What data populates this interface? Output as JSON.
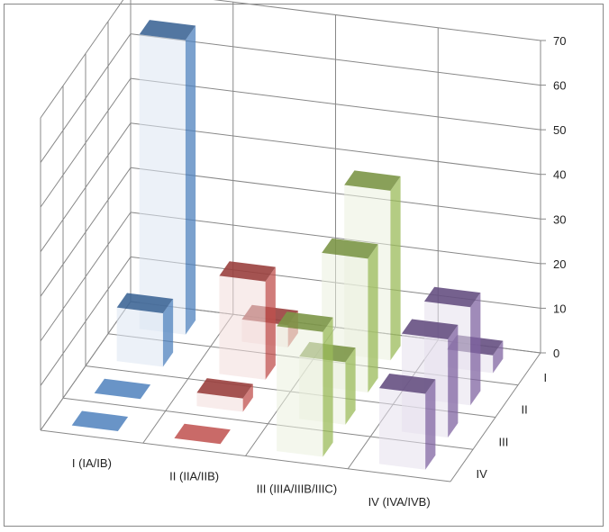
{
  "chart_data": {
    "type": "bar",
    "subtype": "3d-column",
    "categories": [
      "I (IA/IB)",
      "II (IIA/IIB)",
      "III (IIIA/IIIB/IIIC)",
      "IV (IVA/IVB)"
    ],
    "depth_categories": [
      "I",
      "II",
      "III",
      "IV"
    ],
    "series_by_depth": [
      {
        "values": [
          66,
          5,
          38,
          4
        ]
      },
      {
        "values": [
          12,
          22,
          30,
          22
        ]
      },
      {
        "values": [
          0,
          3,
          14,
          22
        ]
      },
      {
        "values": [
          0,
          0,
          28,
          17
        ]
      }
    ],
    "category_colors": [
      "#4F81BD",
      "#C0504D",
      "#9BBB59",
      "#8064A2"
    ],
    "ylim": [
      0,
      70
    ],
    "yticks": [
      "0",
      "10",
      "20",
      "30",
      "40",
      "50",
      "60",
      "70"
    ],
    "grid": true
  }
}
